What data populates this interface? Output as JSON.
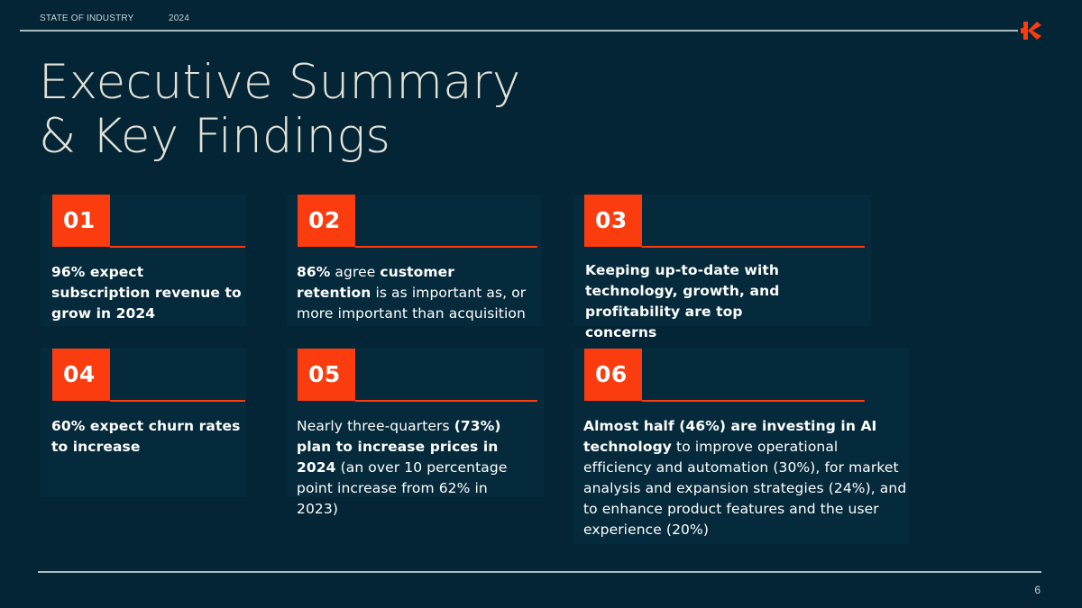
{
  "header": {
    "section": "STATE OF INDUSTRY",
    "year": "2024"
  },
  "brand": {
    "accent": "#FA3C0F",
    "background": "#032536",
    "title_color": "#E4E2D6"
  },
  "title": {
    "line1": "Executive Summary",
    "line2": "& Key Findings"
  },
  "findings": [
    {
      "number": "01",
      "segments": [
        {
          "text": "96% expect subscription revenue to grow in 2024",
          "bold": true
        }
      ]
    },
    {
      "number": "02",
      "segments": [
        {
          "text": "86%",
          "bold": true
        },
        {
          "text": " agree ",
          "bold": false
        },
        {
          "text": "customer retention",
          "bold": true
        },
        {
          "text": " is as important as, or more important than acquisition",
          "bold": false
        }
      ]
    },
    {
      "number": "03",
      "segments": [
        {
          "text": "Keeping up-to-date with technology, growth, and profitability are top concerns",
          "bold": true
        }
      ]
    },
    {
      "number": "04",
      "segments": [
        {
          "text": "60% expect churn rates to increase",
          "bold": true
        }
      ]
    },
    {
      "number": "05",
      "segments": [
        {
          "text": "Nearly three-quarters ",
          "bold": false
        },
        {
          "text": "(73%) plan to increase prices in 2024",
          "bold": true
        },
        {
          "text": " (an over 10 percentage point increase from 62% in 2023)",
          "bold": false
        }
      ]
    },
    {
      "number": "06",
      "segments": [
        {
          "text": "Almost half (46%) are investing in AI technology",
          "bold": true
        },
        {
          "text": " to improve operational efficiency and automation (30%), for market analysis and expansion strategies (24%), and to enhance product features and the user experience (20%)",
          "bold": false
        }
      ]
    }
  ],
  "footer": {
    "page_number": "6"
  }
}
